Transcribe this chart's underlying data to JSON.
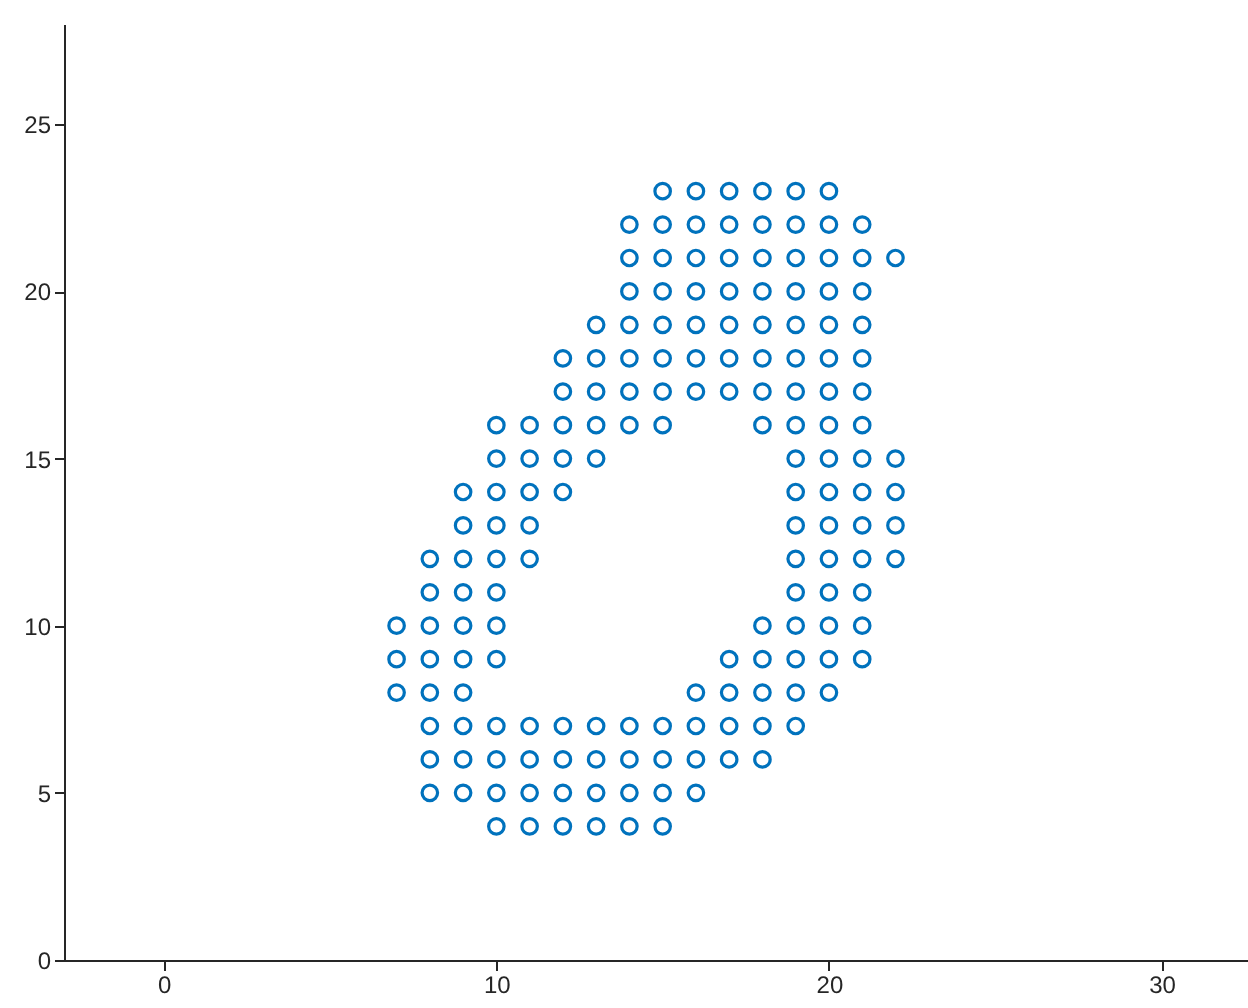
{
  "chart_data": {
    "type": "scatter",
    "xlim": [
      -3,
      32.6
    ],
    "ylim": [
      0,
      28
    ],
    "xticks": [
      0,
      10,
      20,
      30
    ],
    "yticks": [
      0,
      5,
      10,
      15,
      20,
      25
    ],
    "grid": false,
    "marker": "circle",
    "series": [
      {
        "color": "#0072bd",
        "x": [
          15,
          16,
          17,
          18,
          19,
          20,
          14,
          15,
          16,
          17,
          18,
          19,
          20,
          21,
          14,
          15,
          16,
          17,
          18,
          19,
          20,
          21,
          22,
          14,
          15,
          16,
          17,
          18,
          19,
          20,
          21,
          13,
          14,
          15,
          16,
          17,
          18,
          19,
          20,
          21,
          12,
          13,
          14,
          15,
          16,
          17,
          18,
          19,
          20,
          21,
          12,
          13,
          14,
          15,
          16,
          17,
          18,
          19,
          20,
          21,
          10,
          11,
          12,
          13,
          14,
          15,
          18,
          19,
          20,
          21,
          10,
          11,
          12,
          13,
          19,
          20,
          21,
          22,
          9,
          10,
          11,
          12,
          19,
          20,
          21,
          22,
          9,
          10,
          11,
          19,
          20,
          21,
          22,
          8,
          9,
          10,
          11,
          19,
          20,
          21,
          22,
          8,
          9,
          10,
          19,
          20,
          21,
          7,
          8,
          9,
          10,
          18,
          19,
          20,
          21,
          7,
          8,
          9,
          10,
          17,
          18,
          19,
          20,
          21,
          7,
          8,
          9,
          16,
          17,
          18,
          19,
          20,
          8,
          9,
          10,
          11,
          12,
          13,
          14,
          15,
          16,
          17,
          18,
          19,
          8,
          9,
          10,
          11,
          12,
          13,
          14,
          15,
          16,
          17,
          18,
          8,
          9,
          10,
          11,
          12,
          13,
          14,
          15,
          16,
          10,
          11,
          12,
          13,
          14,
          15
        ],
        "values": [
          23,
          23,
          23,
          23,
          23,
          23,
          22,
          22,
          22,
          22,
          22,
          22,
          22,
          22,
          21,
          21,
          21,
          21,
          21,
          21,
          21,
          21,
          21,
          20,
          20,
          20,
          20,
          20,
          20,
          20,
          20,
          19,
          19,
          19,
          19,
          19,
          19,
          19,
          19,
          19,
          18,
          18,
          18,
          18,
          18,
          18,
          18,
          18,
          18,
          18,
          17,
          17,
          17,
          17,
          17,
          17,
          17,
          17,
          17,
          17,
          16,
          16,
          16,
          16,
          16,
          16,
          16,
          16,
          16,
          16,
          15,
          15,
          15,
          15,
          15,
          15,
          15,
          15,
          14,
          14,
          14,
          14,
          14,
          14,
          14,
          14,
          13,
          13,
          13,
          13,
          13,
          13,
          13,
          12,
          12,
          12,
          12,
          12,
          12,
          12,
          12,
          11,
          11,
          11,
          11,
          11,
          11,
          10,
          10,
          10,
          10,
          10,
          10,
          10,
          10,
          9,
          9,
          9,
          9,
          9,
          9,
          9,
          9,
          9,
          8,
          8,
          8,
          8,
          8,
          8,
          8,
          8,
          7,
          7,
          7,
          7,
          7,
          7,
          7,
          7,
          7,
          7,
          7,
          7,
          6,
          6,
          6,
          6,
          6,
          6,
          6,
          6,
          6,
          6,
          6,
          5,
          5,
          5,
          5,
          5,
          5,
          5,
          5,
          5,
          4,
          4,
          4,
          4,
          4,
          4
        ]
      }
    ]
  }
}
